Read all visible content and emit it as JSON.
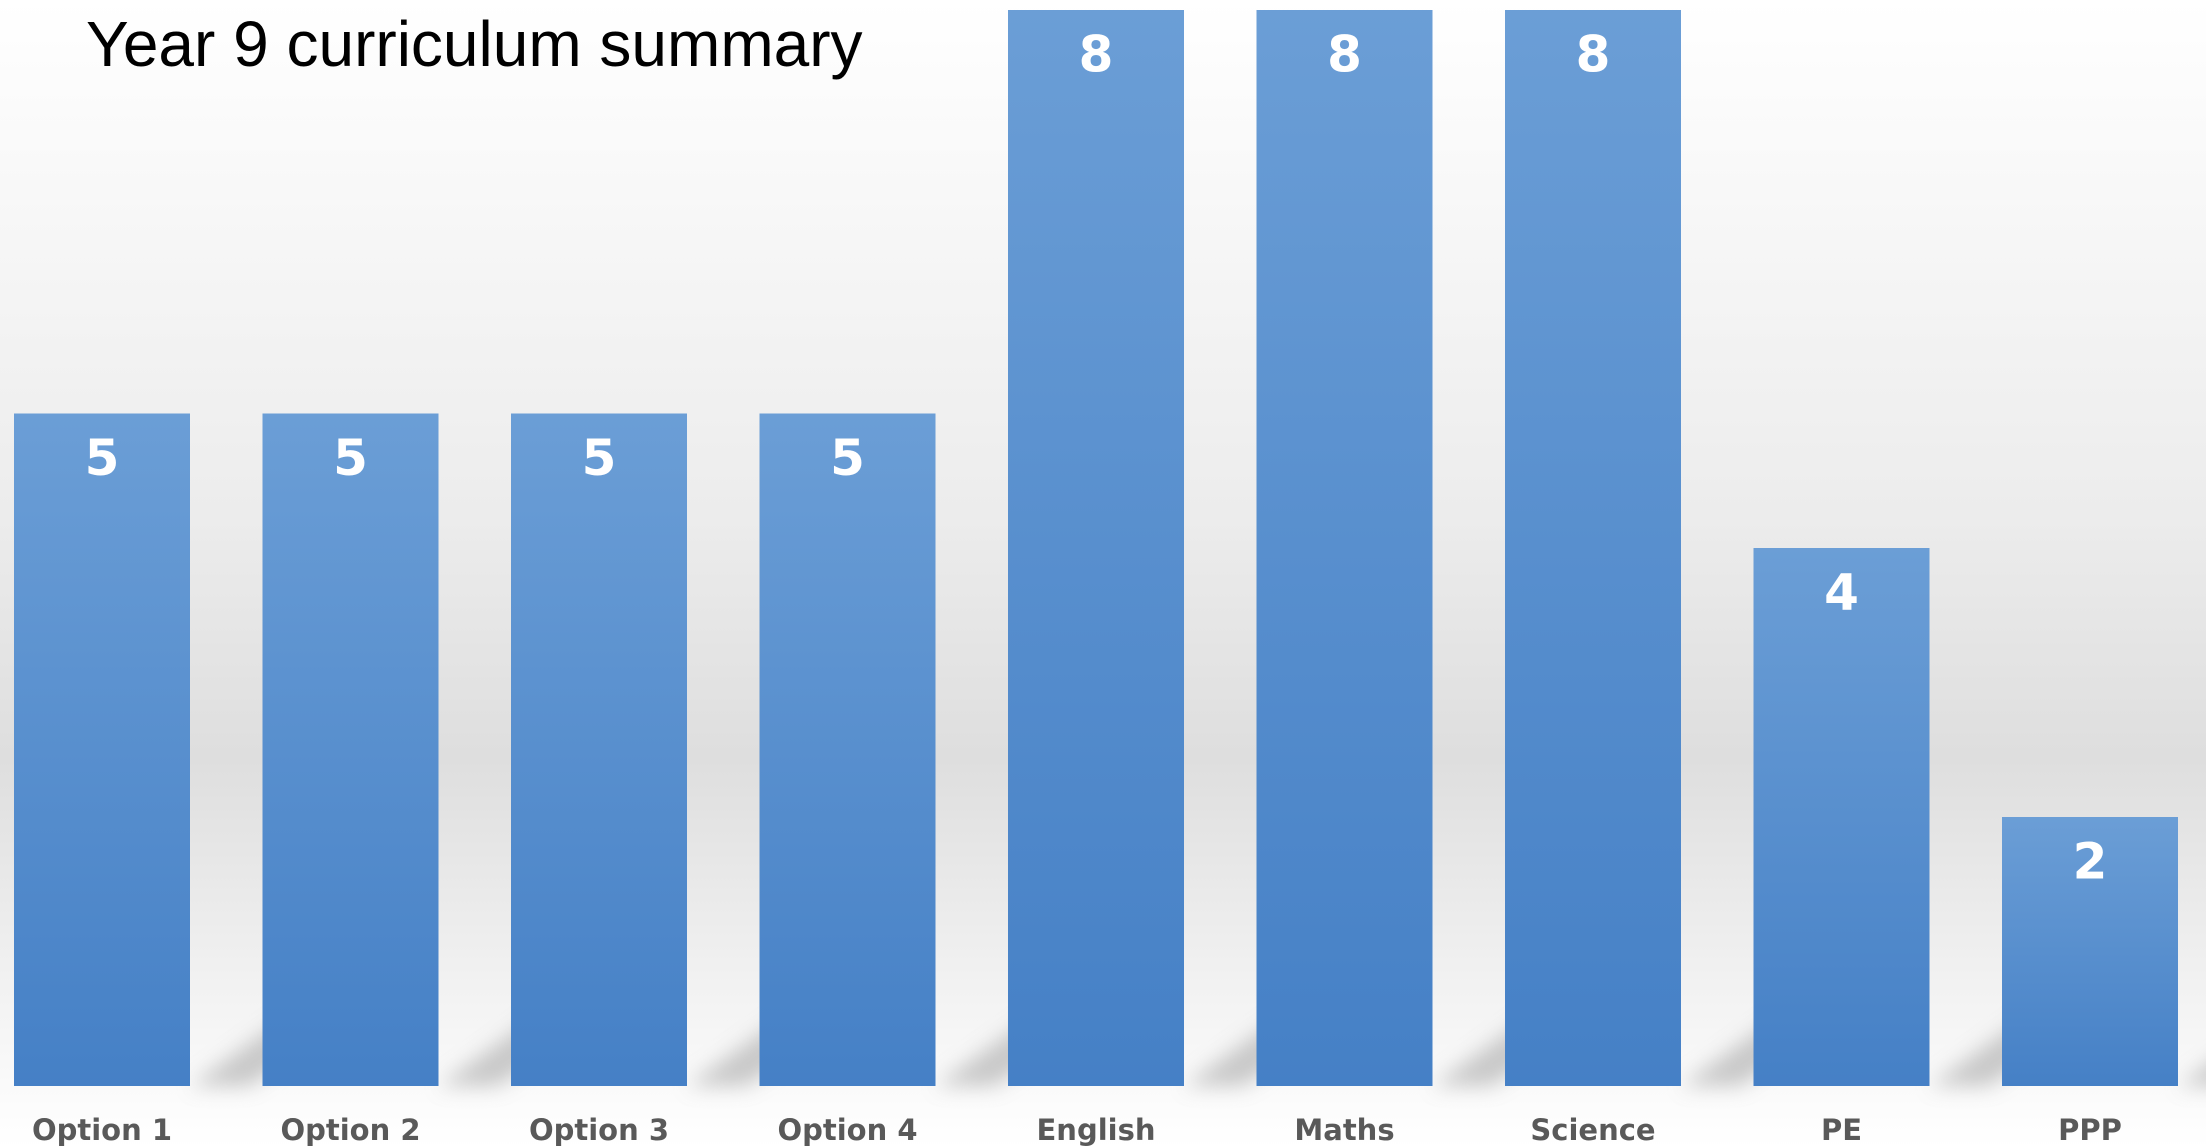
{
  "chart_data": {
    "type": "bar",
    "title": "Year 9 curriculum summary",
    "categories": [
      "Option 1",
      "Option 2",
      "Option 3",
      "Option 4",
      "English",
      "Maths",
      "Science",
      "PE",
      "PPP"
    ],
    "values": [
      5,
      5,
      5,
      5,
      8,
      8,
      8,
      4,
      2
    ],
    "data_labels": [
      "5",
      "5",
      "5",
      "5",
      "8",
      "8",
      "8",
      "4",
      "2"
    ],
    "xlabel": "",
    "ylabel": "",
    "ylim": [
      0,
      8
    ],
    "grid": false,
    "legend": "none",
    "data_labels_position": "inside-top",
    "colors": {
      "bar_top": "#6B9ED6",
      "bar_bottom": "#4580C6",
      "label": "#FFFFFF",
      "tick": "#595959",
      "shadow": "#B8B8B8",
      "background_light": "#FFFFFF",
      "background_mid": "#E2E2E2"
    }
  }
}
